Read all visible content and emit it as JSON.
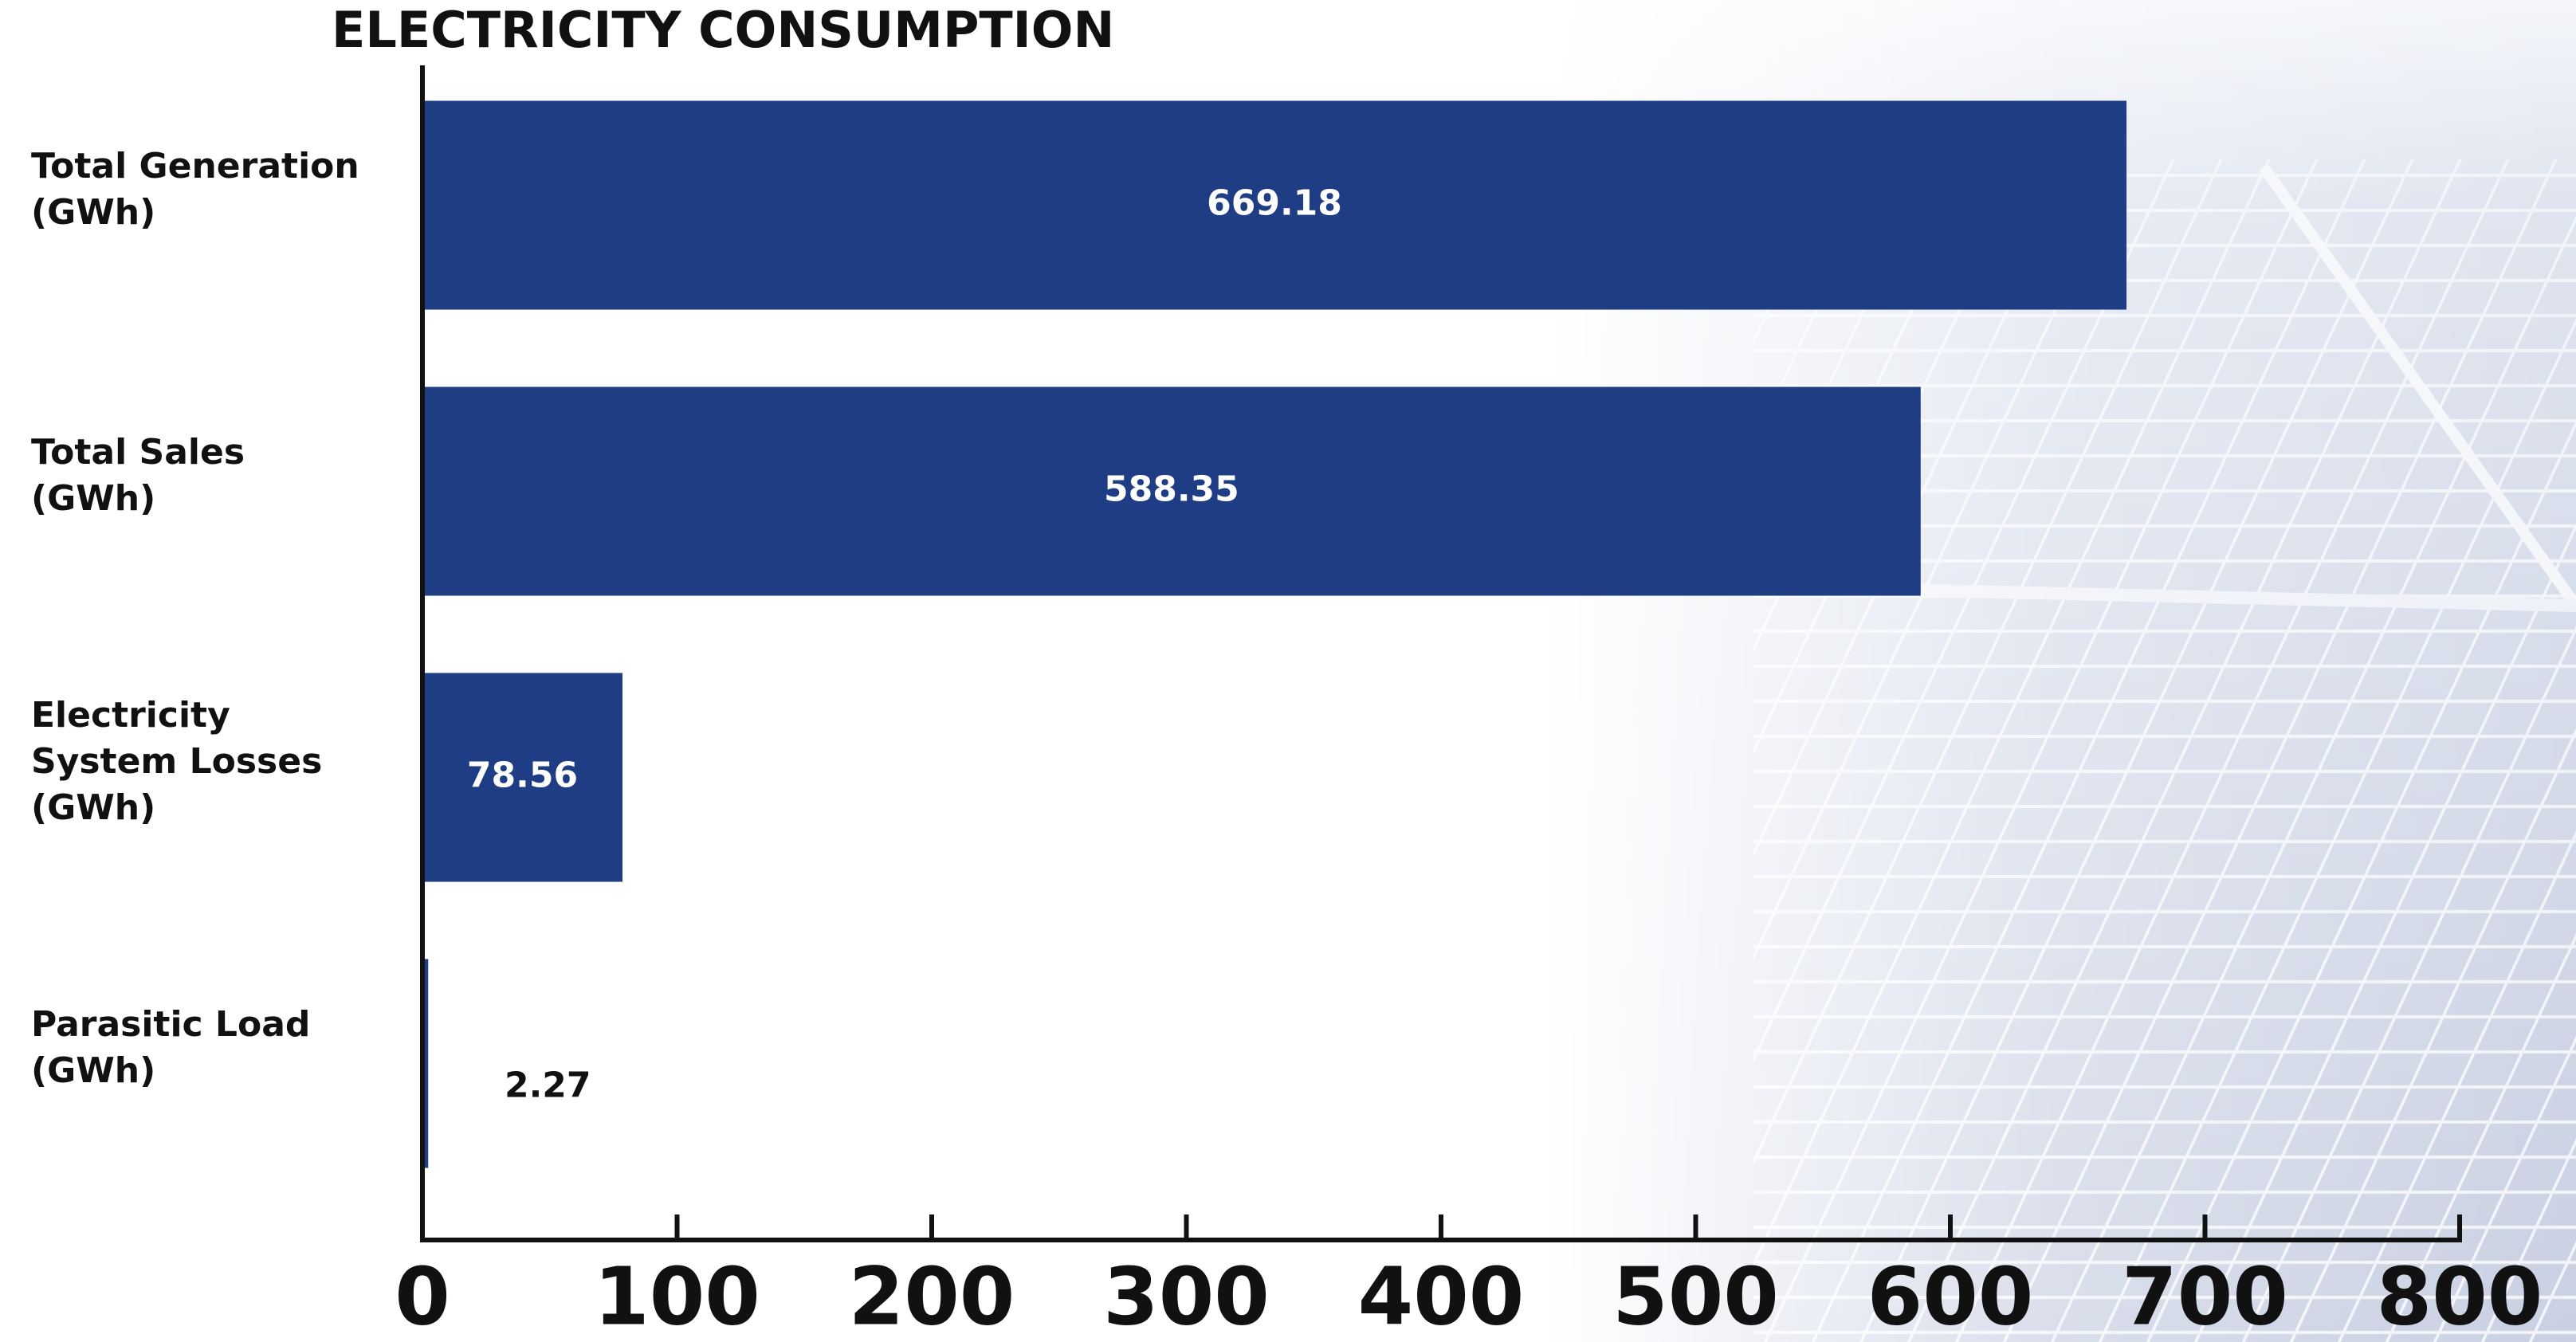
{
  "chart_data": {
    "type": "bar",
    "orientation": "horizontal",
    "title": "ELECTRICITY CONSUMPTION",
    "categories": [
      "Total Generation\n(GWh)",
      "Total Sales\n(GWh)",
      "Electricity\nSystem Losses\n(GWh)",
      "Parasitic Load\n(GWh)"
    ],
    "values": [
      669.18,
      588.35,
      78.56,
      2.27
    ],
    "color": "#1f3d85",
    "xlim": [
      0,
      800
    ],
    "xticks": [
      0,
      100,
      200,
      300,
      400,
      500,
      600,
      700,
      800
    ],
    "grid": false
  }
}
